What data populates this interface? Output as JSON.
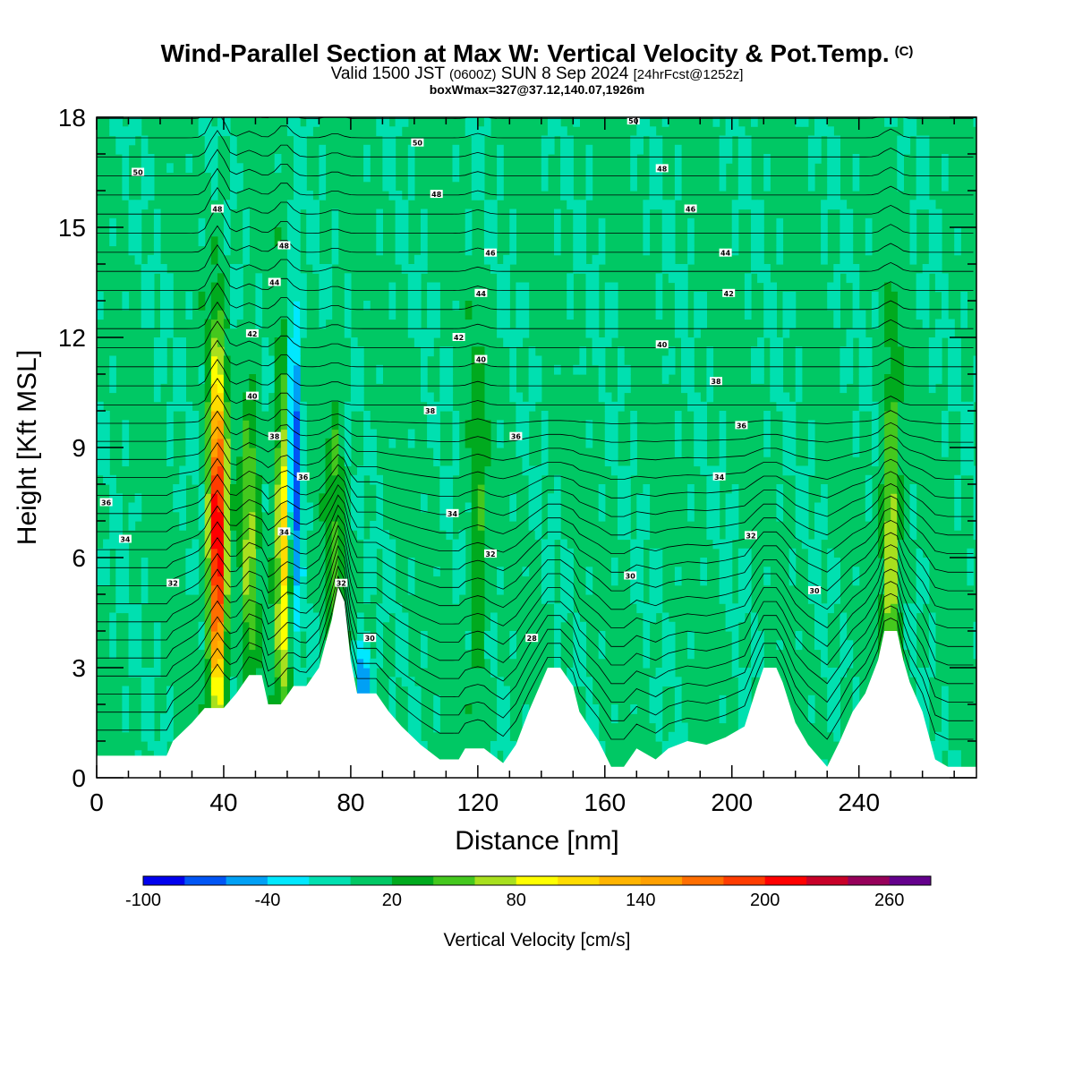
{
  "title": {
    "main": "Wind-Parallel Section at Max W: Vertical Velocity & Pot.Temp.",
    "copyright": "(C)",
    "valid_prefix": "Valid 1500 JST",
    "valid_utc": "(0600Z)",
    "valid_date": "SUN 8 Sep 2024",
    "valid_fcst": "[24hrFcst@1252z]",
    "box": "boxWmax=327@37.12,140.07,1926m"
  },
  "chart_data": {
    "type": "heatmap",
    "xlabel": "Distance [nm]",
    "ylabel": "Height [Kft MSL]",
    "xlim": [
      0,
      277
    ],
    "ylim": [
      0,
      18
    ],
    "xticks": [
      0,
      40,
      80,
      120,
      160,
      200,
      240
    ],
    "yticks": [
      0,
      3,
      6,
      9,
      12,
      15,
      18
    ],
    "colorbar": {
      "title": "Vertical Velocity [cm/s]",
      "boundaries": [
        -100,
        -80,
        -60,
        -40,
        -20,
        0,
        20,
        40,
        60,
        80,
        100,
        120,
        140,
        160,
        180,
        200,
        220,
        240,
        260,
        280
      ],
      "colors": [
        "#0000ee",
        "#0055f5",
        "#00a0f5",
        "#00e8ff",
        "#00e0b0",
        "#00c864",
        "#00aa1e",
        "#44c81e",
        "#a8e01e",
        "#ffff00",
        "#ffdc00",
        "#ffb400",
        "#ffa000",
        "#ff6e00",
        "#ff3c00",
        "#ff0000",
        "#c80028",
        "#96005a",
        "#64008c"
      ],
      "tick_labels": [
        "-100",
        "-40",
        "20",
        "80",
        "140",
        "200",
        "260"
      ]
    },
    "max_w": 327,
    "updrafts": [
      {
        "x": 38,
        "w": 240
      },
      {
        "x": 48,
        "w": 60
      },
      {
        "x": 59,
        "w": 120
      },
      {
        "x": 75,
        "w": 40
      },
      {
        "x": 120,
        "w": 40
      },
      {
        "x": 250,
        "w": 80
      }
    ],
    "downdrafts": [
      {
        "x": 62,
        "w": -100
      },
      {
        "x": 84,
        "w": -70
      }
    ],
    "terrain": [
      [
        0,
        0.6
      ],
      [
        22,
        0.6
      ],
      [
        24,
        1.0
      ],
      [
        30,
        1.5
      ],
      [
        34,
        1.9
      ],
      [
        40,
        1.9
      ],
      [
        44,
        2.3
      ],
      [
        48,
        2.8
      ],
      [
        52,
        2.8
      ],
      [
        54,
        2.0
      ],
      [
        58,
        2.0
      ],
      [
        62,
        2.5
      ],
      [
        66,
        2.5
      ],
      [
        70,
        3.0
      ],
      [
        74,
        4.3
      ],
      [
        76,
        5.2
      ],
      [
        78,
        4.8
      ],
      [
        80,
        3.2
      ],
      [
        82,
        2.3
      ],
      [
        88,
        2.3
      ],
      [
        92,
        1.8
      ],
      [
        96,
        1.4
      ],
      [
        102,
        0.9
      ],
      [
        108,
        0.5
      ],
      [
        114,
        0.5
      ],
      [
        116,
        0.8
      ],
      [
        122,
        0.8
      ],
      [
        128,
        0.4
      ],
      [
        132,
        0.9
      ],
      [
        136,
        1.8
      ],
      [
        140,
        2.6
      ],
      [
        142,
        3.0
      ],
      [
        146,
        3.0
      ],
      [
        150,
        2.5
      ],
      [
        152,
        1.8
      ],
      [
        158,
        1.0
      ],
      [
        162,
        0.3
      ],
      [
        166,
        0.3
      ],
      [
        170,
        0.8
      ],
      [
        176,
        0.5
      ],
      [
        180,
        0.8
      ],
      [
        186,
        1.0
      ],
      [
        192,
        0.9
      ],
      [
        198,
        1.1
      ],
      [
        204,
        1.4
      ],
      [
        208,
        2.5
      ],
      [
        210,
        3.0
      ],
      [
        214,
        3.0
      ],
      [
        216,
        2.6
      ],
      [
        220,
        1.5
      ],
      [
        224,
        0.9
      ],
      [
        228,
        0.5
      ],
      [
        230,
        0.3
      ],
      [
        234,
        1.0
      ],
      [
        238,
        1.8
      ],
      [
        242,
        2.3
      ],
      [
        246,
        3.2
      ],
      [
        248,
        4.0
      ],
      [
        252,
        4.0
      ],
      [
        254,
        3.2
      ],
      [
        256,
        2.6
      ],
      [
        260,
        1.8
      ],
      [
        264,
        0.5
      ],
      [
        268,
        0.3
      ],
      [
        277,
        0.3
      ]
    ],
    "theta_labels": [
      {
        "x": 13,
        "y": 16.5,
        "t": "50"
      },
      {
        "x": 38,
        "y": 15.5,
        "t": "48"
      },
      {
        "x": 59,
        "y": 14.5,
        "t": "48"
      },
      {
        "x": 56,
        "y": 13.5,
        "t": "44"
      },
      {
        "x": 49,
        "y": 12.1,
        "t": "42"
      },
      {
        "x": 49,
        "y": 10.4,
        "t": "40"
      },
      {
        "x": 56,
        "y": 9.3,
        "t": "38"
      },
      {
        "x": 65,
        "y": 8.2,
        "t": "36"
      },
      {
        "x": 3,
        "y": 7.5,
        "t": "36"
      },
      {
        "x": 9,
        "y": 6.5,
        "t": "34"
      },
      {
        "x": 59,
        "y": 6.7,
        "t": "34"
      },
      {
        "x": 24,
        "y": 5.3,
        "t": "32"
      },
      {
        "x": 77,
        "y": 5.3,
        "t": "32"
      },
      {
        "x": 86,
        "y": 3.8,
        "t": "30"
      },
      {
        "x": 101,
        "y": 17.3,
        "t": "50"
      },
      {
        "x": 107,
        "y": 15.9,
        "t": "48"
      },
      {
        "x": 124,
        "y": 14.3,
        "t": "46"
      },
      {
        "x": 121,
        "y": 13.2,
        "t": "44"
      },
      {
        "x": 114,
        "y": 12.0,
        "t": "42"
      },
      {
        "x": 121,
        "y": 11.4,
        "t": "40"
      },
      {
        "x": 105,
        "y": 10.0,
        "t": "38"
      },
      {
        "x": 132,
        "y": 9.3,
        "t": "36"
      },
      {
        "x": 112,
        "y": 7.2,
        "t": "34"
      },
      {
        "x": 124,
        "y": 6.1,
        "t": "32"
      },
      {
        "x": 137,
        "y": 3.8,
        "t": "28"
      },
      {
        "x": 169,
        "y": 17.9,
        "t": "50"
      },
      {
        "x": 178,
        "y": 16.6,
        "t": "48"
      },
      {
        "x": 187,
        "y": 15.5,
        "t": "46"
      },
      {
        "x": 198,
        "y": 14.3,
        "t": "44"
      },
      {
        "x": 199,
        "y": 13.2,
        "t": "42"
      },
      {
        "x": 178,
        "y": 11.8,
        "t": "40"
      },
      {
        "x": 195,
        "y": 10.8,
        "t": "38"
      },
      {
        "x": 203,
        "y": 9.6,
        "t": "36"
      },
      {
        "x": 196,
        "y": 8.2,
        "t": "34"
      },
      {
        "x": 206,
        "y": 6.6,
        "t": "32"
      },
      {
        "x": 168,
        "y": 5.5,
        "t": "30"
      },
      {
        "x": 226,
        "y": 5.1,
        "t": "30"
      }
    ]
  }
}
